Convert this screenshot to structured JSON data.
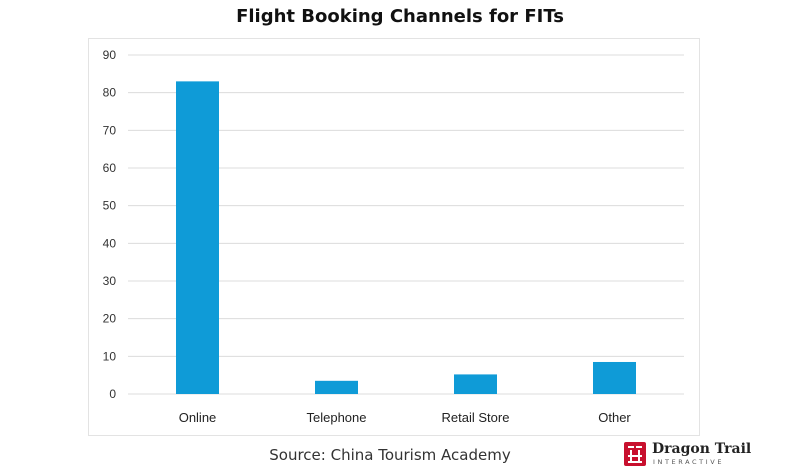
{
  "chart_data": {
    "type": "bar",
    "title": "Flight Booking Channels for FITs",
    "categories": [
      "Online",
      "Telephone",
      "Retail Store",
      "Other"
    ],
    "values": [
      83,
      3.5,
      5.2,
      8.5
    ],
    "ylim": [
      0,
      90
    ],
    "yticks": [
      0,
      10,
      20,
      30,
      40,
      50,
      60,
      70,
      80,
      90
    ],
    "xlabel": "",
    "ylabel": "",
    "grid": true,
    "bar_color": "#0f9bd7"
  },
  "source": "Source: China Tourism Academy",
  "logo": {
    "name": "Dragon Trail",
    "subtitle": "INTERACTIVE",
    "color": "#c8102e"
  }
}
